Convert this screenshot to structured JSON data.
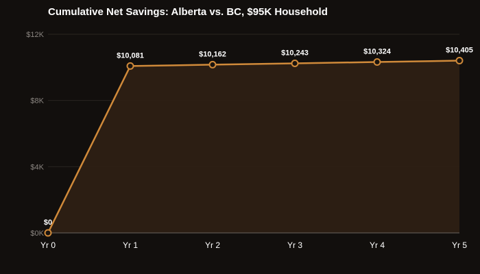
{
  "chart_data": {
    "type": "area",
    "title": "Cumulative Net Savings: Alberta vs. BC, $95K Household",
    "categories": [
      "Yr 0",
      "Yr 1",
      "Yr 2",
      "Yr 3",
      "Yr 4",
      "Yr 5"
    ],
    "values": [
      0,
      10081,
      10162,
      10243,
      10324,
      10405
    ],
    "data_labels": [
      "$0",
      "$10,081",
      "$10,162",
      "$10,243",
      "$10,324",
      "$10,405"
    ],
    "ylim": [
      0,
      12000
    ],
    "yticks": [
      0,
      4000,
      8000,
      12000
    ],
    "ytick_labels": [
      "$0K",
      "$4K",
      "$8K",
      "$12K"
    ],
    "xlabel": "",
    "ylabel": "",
    "grid": true,
    "colors": {
      "line": "#d08a3a",
      "fill": "#2e2014",
      "marker_fill": "#1a140f",
      "background": "#120f0d",
      "grid": "#2a2420",
      "axis": "#6a6560"
    }
  }
}
